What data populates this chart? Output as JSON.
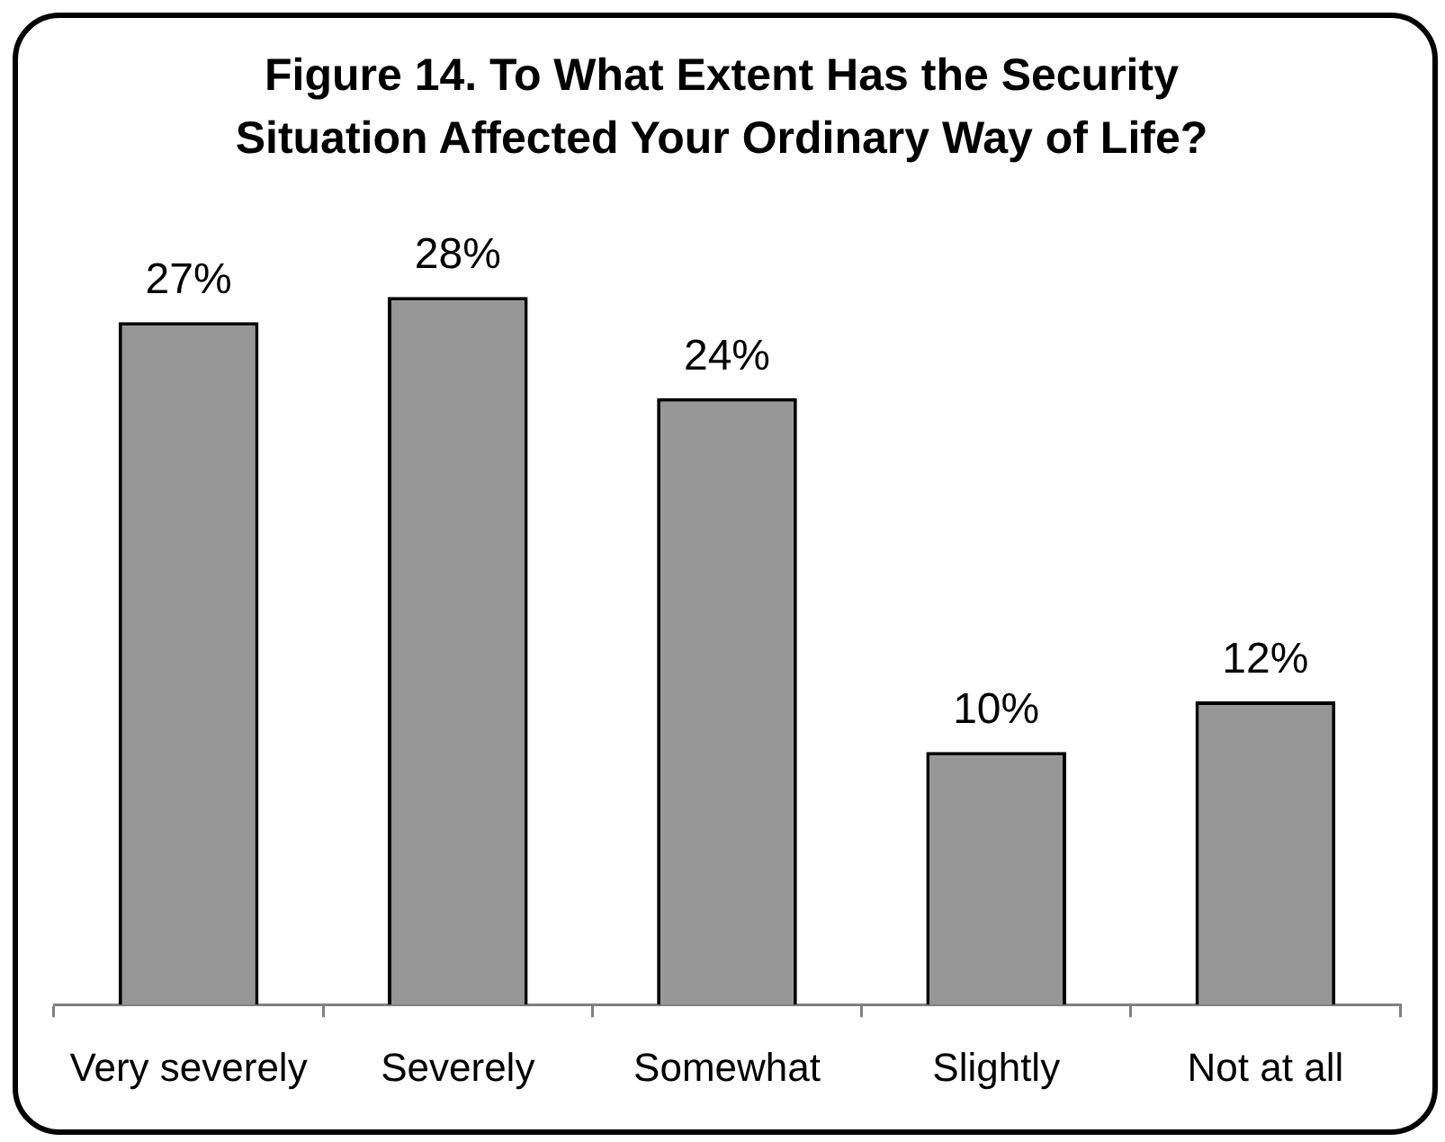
{
  "chart_data": {
    "type": "bar",
    "title": "Figure 14. To What Extent Has the Security Situation Affected Your Ordinary Way of Life?",
    "categories": [
      "Very severely",
      "Severely",
      "Somewhat",
      "Slightly",
      "Not at all"
    ],
    "values": [
      27,
      28,
      24,
      10,
      12
    ],
    "color": "#969696",
    "value_labels": [
      "27%",
      "28%",
      "24%",
      "10%",
      "12%"
    ]
  }
}
